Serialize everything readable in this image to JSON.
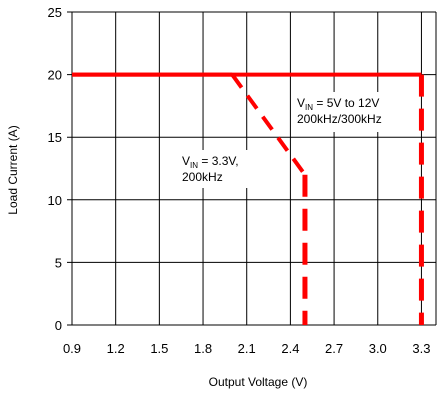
{
  "chart_data": {
    "type": "line",
    "title": "",
    "xlabel": "Output Voltage (V)",
    "ylabel": "Load Current (A)",
    "xlim": [
      0.9,
      3.4
    ],
    "ylim": [
      0,
      25
    ],
    "x_ticks": [
      "0.9",
      "1.2",
      "1.5",
      "1.8",
      "2.1",
      "2.4",
      "2.7",
      "3.0",
      "3.3"
    ],
    "y_ticks": [
      "0",
      "5",
      "10",
      "15",
      "20",
      "25"
    ],
    "grid": true,
    "line_color": "#ff0000",
    "series": [
      {
        "name": "VIN = 3.3V, 200kHz",
        "points": [
          [
            0.9,
            20
          ],
          [
            2.0,
            20
          ],
          [
            2.5,
            12
          ],
          [
            2.5,
            0
          ]
        ]
      },
      {
        "name": "VIN = 5V to 12V 200kHz/300kHz",
        "points": [
          [
            0.9,
            20
          ],
          [
            3.3,
            20
          ],
          [
            3.3,
            0
          ]
        ]
      }
    ],
    "annotations": [
      {
        "id": "vin33",
        "lines": [
          [
            {
              "text": "V",
              "sub": "IN",
              "rest": " = 3.3V,"
            }
          ],
          [
            {
              "text": "200kHz"
            }
          ]
        ]
      },
      {
        "id": "vin5to12",
        "lines": [
          [
            {
              "text": "V",
              "sub": "IN",
              "rest": " = 5V to 12V"
            }
          ],
          [
            {
              "text": "200kHz/300kHz"
            }
          ]
        ]
      }
    ]
  }
}
